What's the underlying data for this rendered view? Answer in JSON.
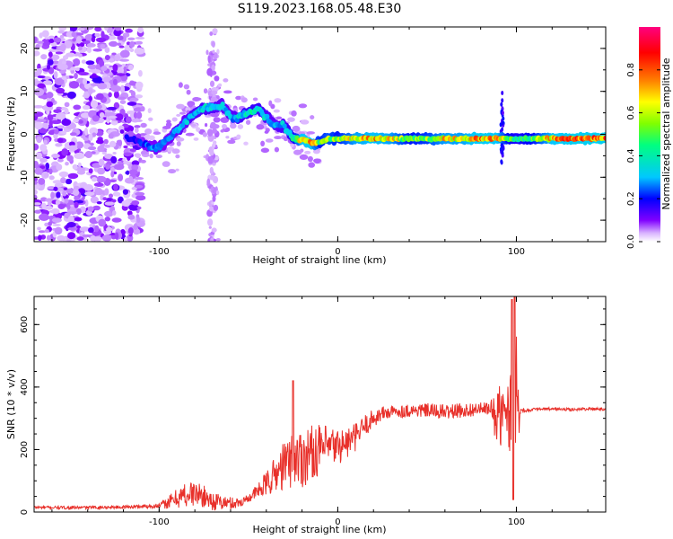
{
  "title": "S119.2023.168.05.48.E30",
  "chart_data": [
    {
      "type": "heatmap",
      "xlabel": "Height of straight line (km)",
      "ylabel": "Frequency (Hz)",
      "xlim": [
        -170,
        150
      ],
      "ylim": [
        -25,
        25
      ],
      "x_ticks": [
        "-100",
        "0",
        "100"
      ],
      "x_tick_values": [
        -100,
        0,
        100
      ],
      "y_ticks": [
        "-20",
        "-10",
        "0",
        "10",
        "20"
      ],
      "y_tick_values": [
        -20,
        -10,
        0,
        10,
        20
      ],
      "colorbar": {
        "label": "Normalized spectral amplitude",
        "range": [
          0,
          1
        ],
        "ticks": [
          "0.0",
          "0.2",
          "0.4",
          "0.6",
          "0.8"
        ],
        "tick_values": [
          0,
          0.2,
          0.4,
          0.6,
          0.8
        ],
        "colormap": [
          "#ffffff",
          "#d9b3ff",
          "#8000ff",
          "#0000ff",
          "#00c8ff",
          "#00ff80",
          "#80ff00",
          "#ffff00",
          "#ff8000",
          "#ff0000",
          "#ff0080"
        ]
      },
      "ridge": {
        "x": [
          -115,
          -105,
          -100,
          -95,
          -90,
          -85,
          -80,
          -75,
          -70,
          -65,
          -60,
          -55,
          -50,
          -45,
          -40,
          -35,
          -30,
          -25,
          -20,
          -15,
          -10,
          -5,
          0,
          10,
          20,
          30,
          40,
          50,
          60,
          70,
          80,
          90,
          95,
          100,
          110,
          120,
          130,
          140,
          150
        ],
        "y": [
          -1,
          -3,
          -3,
          -1,
          1,
          3,
          5,
          6,
          6,
          7,
          4,
          4,
          5,
          6,
          4,
          2,
          2,
          -1,
          -1,
          -2,
          -2,
          -1,
          -1,
          -1,
          -1,
          -1,
          -1,
          -1,
          -1,
          -1,
          -1,
          -1,
          -1,
          -1,
          -1,
          -1,
          -1,
          -1,
          -1
        ],
        "amplitude": [
          0.2,
          0.3,
          0.3,
          0.3,
          0.35,
          0.35,
          0.4,
          0.4,
          0.4,
          0.35,
          0.35,
          0.4,
          0.45,
          0.45,
          0.4,
          0.35,
          0.4,
          0.5,
          0.85,
          0.9,
          0.6,
          0.7,
          0.6,
          0.8,
          0.85,
          0.8,
          0.6,
          0.65,
          0.8,
          0.8,
          0.9,
          0.85,
          0.6,
          0.5,
          0.6,
          0.85,
          0.9,
          0.9,
          0.9
        ]
      }
    },
    {
      "type": "line",
      "xlabel": "Height of straight line (km)",
      "ylabel": "SNR (10 * v/v)",
      "xlim": [
        -170,
        150
      ],
      "ylim": [
        0,
        690
      ],
      "x_ticks": [
        "-100",
        "0",
        "100"
      ],
      "x_tick_values": [
        -100,
        0,
        100
      ],
      "y_ticks": [
        "0",
        "200",
        "400",
        "600"
      ],
      "y_tick_values": [
        0,
        200,
        400,
        600
      ],
      "series_color": "#e8302a",
      "envelope": {
        "x": [
          -170,
          -150,
          -120,
          -100,
          -95,
          -90,
          -85,
          -80,
          -75,
          -70,
          -65,
          -60,
          -55,
          -50,
          -45,
          -40,
          -35,
          -30,
          -25,
          -20,
          -15,
          -10,
          -5,
          0,
          5,
          10,
          15,
          20,
          25,
          30,
          40,
          50,
          60,
          70,
          80,
          85,
          90,
          95,
          98,
          100,
          102,
          105,
          110,
          120,
          130,
          140,
          150
        ],
        "y": [
          15,
          14,
          16,
          20,
          30,
          45,
          55,
          60,
          50,
          35,
          30,
          28,
          30,
          45,
          65,
          90,
          120,
          150,
          170,
          175,
          190,
          200,
          205,
          210,
          220,
          240,
          275,
          300,
          315,
          320,
          325,
          325,
          320,
          325,
          330,
          330,
          300,
          320,
          340,
          330,
          325,
          325,
          328,
          330,
          328,
          330,
          330
        ]
      },
      "noise": {
        "x": [
          -170,
          -120,
          -100,
          -85,
          -70,
          -50,
          -40,
          -30,
          -25,
          -20,
          -10,
          0,
          10,
          20,
          30,
          60,
          85,
          90,
          95,
          97,
          100,
          102,
          105,
          150
        ],
        "amplitude": [
          5,
          5,
          8,
          45,
          30,
          12,
          40,
          80,
          90,
          100,
          80,
          60,
          45,
          30,
          20,
          25,
          20,
          110,
          60,
          300,
          300,
          10,
          5,
          5
        ]
      }
    }
  ]
}
